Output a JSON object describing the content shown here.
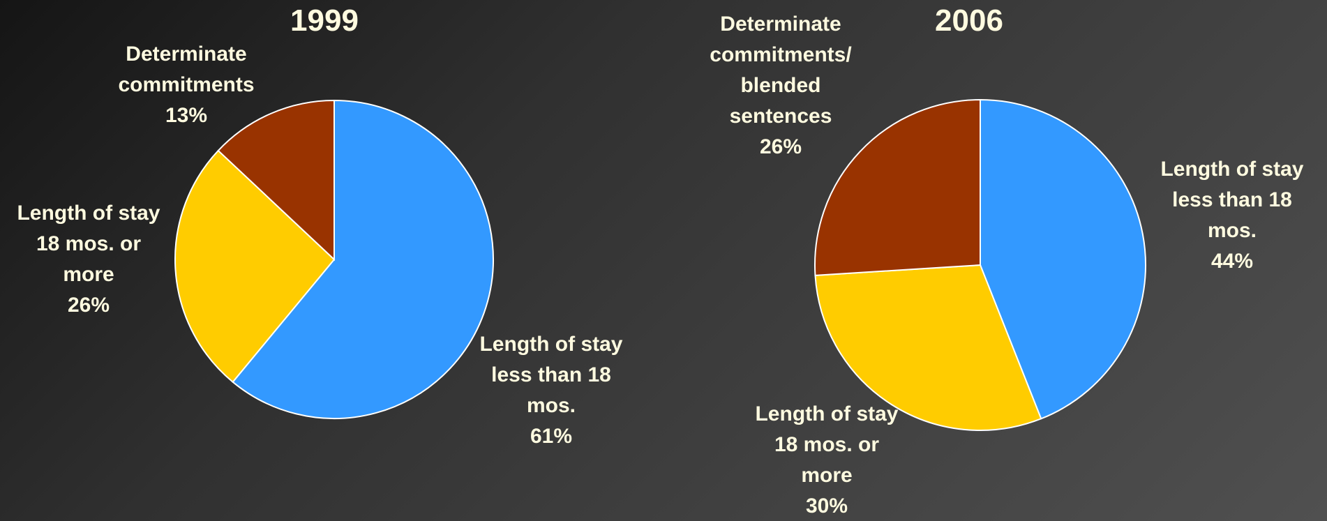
{
  "chart_data": [
    {
      "type": "pie",
      "title": "1999",
      "colors": [
        "#3399ff",
        "#ffcc00",
        "#993300"
      ],
      "slices": [
        {
          "label_lines": [
            "Length of stay",
            "less than 18",
            "mos."
          ],
          "value_text": "61%",
          "value": 61
        },
        {
          "label_lines": [
            "Length of stay",
            "18 mos. or",
            "more"
          ],
          "value_text": "26%",
          "value": 26
        },
        {
          "label_lines": [
            "Determinate",
            "commitments"
          ],
          "value_text": "13%",
          "value": 13
        }
      ]
    },
    {
      "type": "pie",
      "title": "2006",
      "colors": [
        "#3399ff",
        "#ffcc00",
        "#993300"
      ],
      "slices": [
        {
          "label_lines": [
            "Length of stay",
            "less than 18",
            "mos."
          ],
          "value_text": "44%",
          "value": 44
        },
        {
          "label_lines": [
            "Length of stay",
            "18 mos. or",
            "more"
          ],
          "value_text": "30%",
          "value": 30
        },
        {
          "label_lines": [
            "Determinate",
            "commitments/",
            "blended",
            "sentences"
          ],
          "value_text": "26%",
          "value": 26
        }
      ]
    }
  ]
}
